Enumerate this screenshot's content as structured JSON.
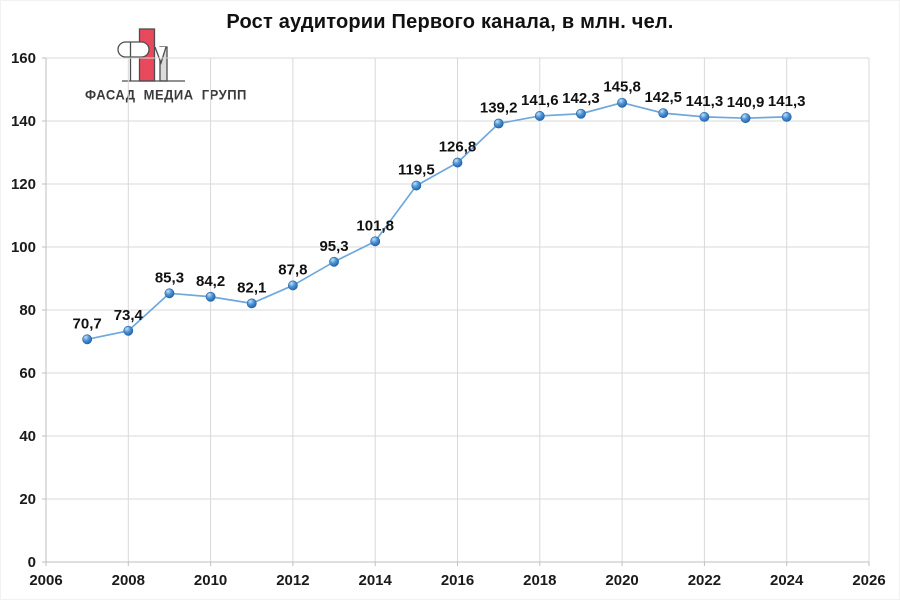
{
  "logo": {
    "text": "ФАСАД МЕДИА ГРУПП",
    "colors": {
      "red": "#E8495C",
      "outline": "#4D4D4D",
      "gray": "#DCDCDC",
      "text": "#3A3A3A"
    }
  },
  "chart_data": {
    "type": "line",
    "title": "Рост аудитории Первого канала, в млн. чел.",
    "x": [
      2007,
      2008,
      2009,
      2010,
      2011,
      2012,
      2013,
      2014,
      2015,
      2016,
      2017,
      2018,
      2019,
      2020,
      2021,
      2022,
      2023,
      2024
    ],
    "values": [
      70.7,
      73.4,
      85.3,
      84.2,
      82.1,
      87.8,
      95.3,
      101.8,
      119.5,
      126.8,
      139.2,
      141.6,
      142.3,
      145.8,
      142.5,
      141.3,
      140.9,
      141.3
    ],
    "point_labels": [
      "70,7",
      "73,4",
      "85,3",
      "84,2",
      "82,1",
      "87,8",
      "95,3",
      "101,8",
      "119,5",
      "126,8",
      "139,2",
      "141,6",
      "142,3",
      "145,8",
      "142,5",
      "141,3",
      "140,9",
      "141,3"
    ],
    "xlim": [
      2006,
      2026
    ],
    "ylim": [
      0,
      160
    ],
    "x_ticks": [
      2006,
      2008,
      2010,
      2012,
      2014,
      2016,
      2018,
      2020,
      2022,
      2024,
      2026
    ],
    "y_ticks": [
      0,
      20,
      40,
      60,
      80,
      100,
      120,
      140,
      160
    ],
    "grid": true,
    "legend": "none",
    "colors": {
      "line": "#6FA8DC",
      "marker_highlight": "#C3E0F6",
      "marker_mid": "#4E94D6",
      "marker_edge": "#1F5FA5",
      "grid": "#D9D9D9",
      "axis": "#BFBFBF",
      "label": "#111111"
    }
  }
}
